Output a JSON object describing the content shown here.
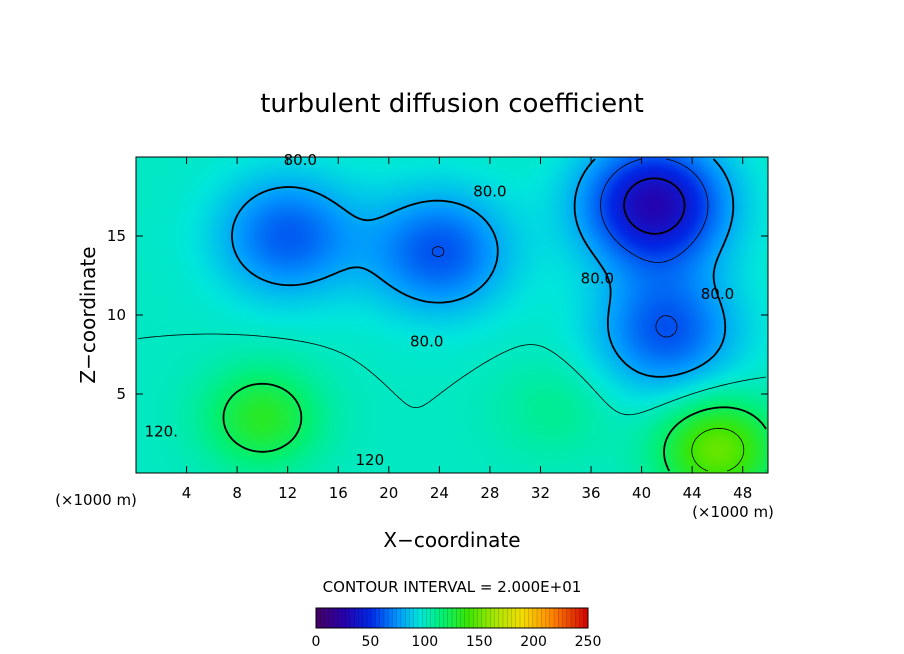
{
  "chart_data": {
    "type": "heatmap",
    "title": "turbulent diffusion coefficient",
    "xlabel": "X−coordinate",
    "ylabel": "Z−coordinate",
    "x_unit": "(×1000 m)",
    "xlim": [
      0,
      50
    ],
    "ylim": [
      0,
      20
    ],
    "x_ticks": [
      4,
      8,
      12,
      16,
      20,
      24,
      28,
      32,
      36,
      40,
      44,
      48
    ],
    "y_ticks": [
      5,
      10,
      15
    ],
    "contour_interval_text": "CONTOUR INTERVAL = 2.000E+01",
    "contour_interval": 20,
    "colorbar": {
      "min": 0,
      "max": 250,
      "ticks": [
        0,
        50,
        100,
        150,
        200,
        250
      ]
    },
    "contour_labels": [
      {
        "text": "80.0",
        "x": 13,
        "z": 19.5
      },
      {
        "text": "80.0",
        "x": 28,
        "z": 17.5
      },
      {
        "text": "80.0",
        "x": 23,
        "z": 8
      },
      {
        "text": "80.0",
        "x": 36.5,
        "z": 12
      },
      {
        "text": "80.0",
        "x": 46,
        "z": 11
      },
      {
        "text": "120.",
        "x": 2,
        "z": 2.3
      },
      {
        "text": "120",
        "x": 18.5,
        "z": 0.5
      }
    ],
    "features": [
      {
        "kind": "low",
        "x": 12,
        "z": 15,
        "value": 62
      },
      {
        "kind": "low",
        "x": 24,
        "z": 14,
        "value": 60
      },
      {
        "kind": "low",
        "x": 41,
        "z": 17,
        "value": 28
      },
      {
        "kind": "low",
        "x": 42,
        "z": 9,
        "value": 60
      },
      {
        "kind": "high",
        "x": 10,
        "z": 3.5,
        "value": 132
      },
      {
        "kind": "high",
        "x": 46,
        "z": 1.5,
        "value": 150
      },
      {
        "kind": "high",
        "x": 33,
        "z": 4,
        "value": 110
      }
    ]
  }
}
